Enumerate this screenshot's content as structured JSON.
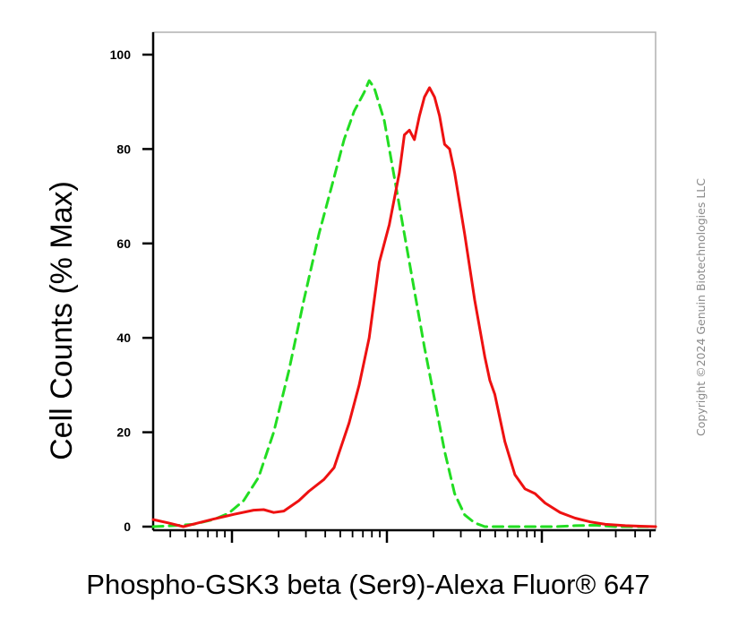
{
  "chart_data": {
    "type": "line",
    "xlabel": "Phospho-GSK3 beta (Ser9)-Alexa Fluor® 647",
    "ylabel": "Cell Counts (% Max)",
    "xscale": "log",
    "ylim": [
      0,
      104
    ],
    "y_ticks": [
      0,
      20,
      40,
      60,
      80,
      100
    ],
    "y_tick_labels": [
      "0",
      "20",
      "40",
      "60",
      "80",
      "100"
    ],
    "grid": false,
    "legend": "none",
    "series": [
      {
        "color": "#22dd22",
        "line_style": "dashed",
        "points": [
          [
            0.0,
            0.0
          ],
          [
            0.04,
            0.2
          ],
          [
            0.08,
            0.5
          ],
          [
            0.12,
            1.5
          ],
          [
            0.15,
            2.8
          ],
          [
            0.18,
            5.5
          ],
          [
            0.21,
            10.5
          ],
          [
            0.24,
            20.0
          ],
          [
            0.27,
            33.0
          ],
          [
            0.3,
            48.0
          ],
          [
            0.33,
            62.0
          ],
          [
            0.355,
            72.0
          ],
          [
            0.38,
            82.0
          ],
          [
            0.4,
            88.0
          ],
          [
            0.42,
            92.0
          ],
          [
            0.43,
            94.5
          ],
          [
            0.44,
            93.0
          ],
          [
            0.46,
            86.0
          ],
          [
            0.48,
            74.0
          ],
          [
            0.5,
            62.0
          ],
          [
            0.52,
            50.0
          ],
          [
            0.54,
            38.0
          ],
          [
            0.56,
            27.0
          ],
          [
            0.58,
            16.0
          ],
          [
            0.6,
            7.0
          ],
          [
            0.62,
            2.5
          ],
          [
            0.64,
            0.8
          ],
          [
            0.66,
            0.0
          ],
          [
            0.8,
            0.0
          ],
          [
            0.84,
            0.2
          ],
          [
            0.88,
            0.3
          ],
          [
            0.92,
            0.0
          ],
          [
            1.0,
            0.0
          ]
        ]
      },
      {
        "color": "#ee1111",
        "line_style": "solid",
        "points": [
          [
            0.0,
            1.5
          ],
          [
            0.03,
            0.8
          ],
          [
            0.06,
            0.0
          ],
          [
            0.09,
            0.8
          ],
          [
            0.12,
            1.6
          ],
          [
            0.16,
            2.6
          ],
          [
            0.2,
            3.5
          ],
          [
            0.22,
            3.6
          ],
          [
            0.24,
            3.0
          ],
          [
            0.26,
            3.3
          ],
          [
            0.29,
            5.5
          ],
          [
            0.31,
            7.5
          ],
          [
            0.34,
            10.0
          ],
          [
            0.36,
            12.5
          ],
          [
            0.39,
            22.0
          ],
          [
            0.41,
            30.0
          ],
          [
            0.43,
            40.0
          ],
          [
            0.45,
            56.0
          ],
          [
            0.47,
            64.0
          ],
          [
            0.49,
            75.0
          ],
          [
            0.5,
            83.0
          ],
          [
            0.51,
            84.0
          ],
          [
            0.52,
            82.0
          ],
          [
            0.53,
            87.0
          ],
          [
            0.54,
            91.0
          ],
          [
            0.55,
            93.0
          ],
          [
            0.56,
            91.0
          ],
          [
            0.57,
            87.0
          ],
          [
            0.58,
            81.0
          ],
          [
            0.59,
            80.0
          ],
          [
            0.6,
            75.0
          ],
          [
            0.62,
            62.0
          ],
          [
            0.64,
            48.0
          ],
          [
            0.66,
            36.0
          ],
          [
            0.67,
            31.0
          ],
          [
            0.68,
            28.0
          ],
          [
            0.7,
            18.0
          ],
          [
            0.72,
            11.0
          ],
          [
            0.74,
            8.0
          ],
          [
            0.76,
            7.0
          ],
          [
            0.78,
            5.0
          ],
          [
            0.81,
            3.0
          ],
          [
            0.84,
            1.8
          ],
          [
            0.87,
            1.0
          ],
          [
            0.9,
            0.5
          ],
          [
            0.94,
            0.2
          ],
          [
            0.97,
            0.1
          ],
          [
            1.0,
            0.0
          ]
        ]
      }
    ]
  },
  "watermark": {
    "text": "Copyright ©2024 Genuin Biotechnologies LLC"
  }
}
